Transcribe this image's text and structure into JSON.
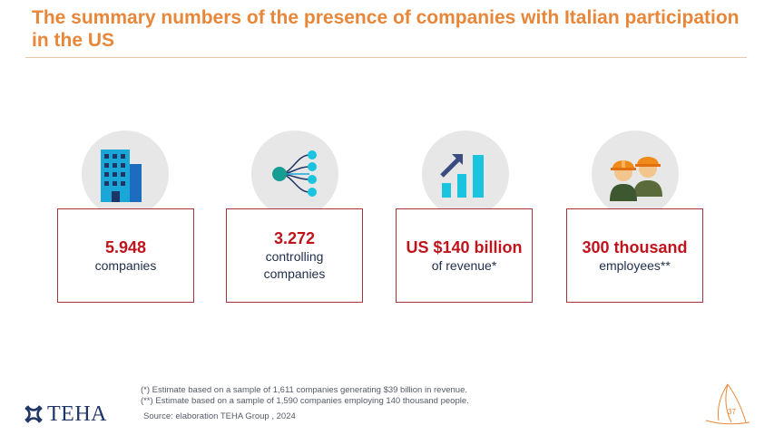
{
  "title": "The summary numbers of the presence of companies with Italian participation in the US",
  "stats": [
    {
      "icon": "office-building-icon",
      "value": "5.948",
      "label": "companies"
    },
    {
      "icon": "network-nodes-icon",
      "value": "3.272",
      "label": "controlling companies"
    },
    {
      "icon": "growth-bar-chart-icon",
      "value": "US $140 billion",
      "label": "of revenue*"
    },
    {
      "icon": "workers-hardhat-icon",
      "value": "300 thousand",
      "label": "employees**"
    }
  ],
  "footnotes": {
    "note1": "(*) Estimate based on a sample of 1,611 companies generating $39 billion in revenue.",
    "note2": "(**) Estimate based on a sample of 1,590 companies employing 140 thousand people.",
    "source": "Source: elaboration TEHA Group , 2024"
  },
  "logo": {
    "text": "TEHA"
  },
  "page_number": "37",
  "colors": {
    "title": "#e8873a",
    "accent": "#c0141c",
    "box_border": "#a83238",
    "icon_blue": "#1aa7d8",
    "navy": "#1f3566"
  }
}
